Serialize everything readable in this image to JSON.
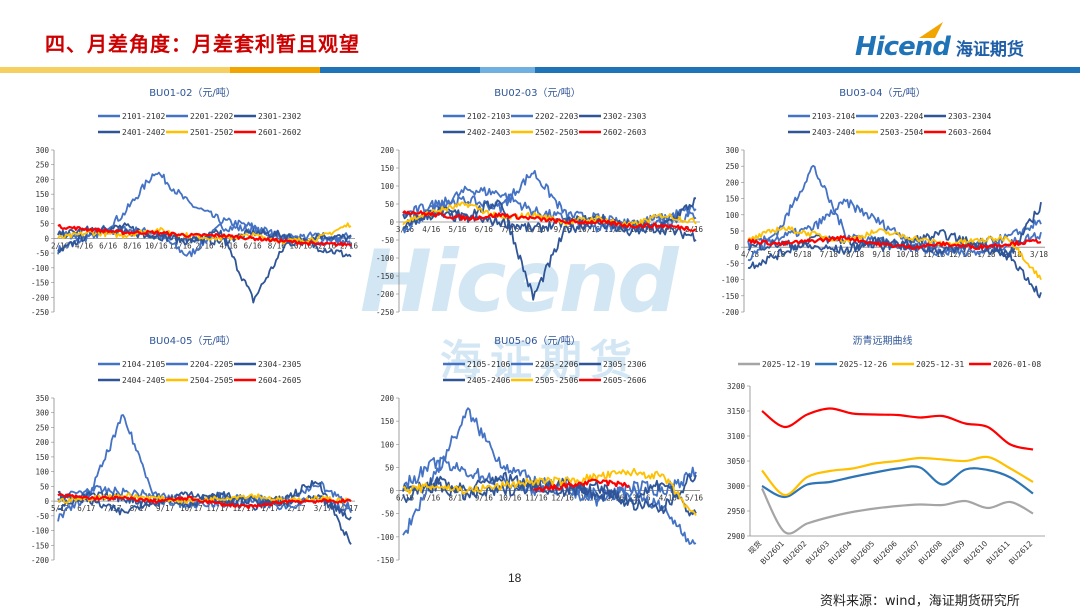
{
  "page": {
    "title": "四、月差角度：月差套利暂且观望",
    "logo_text": "Hicend",
    "logo_cn": "海证期货",
    "watermark_text": "Hicend",
    "watermark_cn": "海证期货",
    "page_number": "18",
    "source": "资料来源：wind，海证期货研究所",
    "colors": {
      "title": "#cc0000",
      "brand_blue": "#1f73b7",
      "stripe_yellow": "#f5d060",
      "stripe_orange": "#f0a500",
      "stripe_blue": "#1f73b7",
      "stripe_light": "#6fb0e0"
    }
  },
  "chart_data": [
    {
      "type": "line",
      "title": "BU01-02（元/吨）",
      "ylim": [
        -250,
        300
      ],
      "yticks": [
        300,
        250,
        200,
        150,
        100,
        50,
        0,
        -50,
        -100,
        -150,
        -200,
        -250
      ],
      "xticks": [
        "2/16",
        "4/16",
        "6/16",
        "8/16",
        "10/16",
        "12/16",
        "2/16",
        "4/16",
        "6/16",
        "8/16",
        "10/16",
        "12/16",
        "2/16"
      ],
      "x_range": [
        "7/16",
        "6/15"
      ],
      "series": [
        {
          "name": "2101-2102",
          "color": "#4472c4",
          "values": [
            -40,
            10,
            30,
            20,
            -60,
            40,
            30,
            0,
            -20,
            10
          ]
        },
        {
          "name": "2201-2202",
          "color": "#4472c4",
          "values": [
            20,
            0,
            80,
            230,
            120,
            60,
            40,
            0,
            10,
            -20
          ]
        },
        {
          "name": "2301-2302",
          "color": "#2f5597",
          "values": [
            -50,
            20,
            40,
            10,
            -10,
            20,
            -210,
            -20,
            10,
            0
          ]
        },
        {
          "name": "2401-2402",
          "color": "#2f5597",
          "values": [
            10,
            30,
            20,
            10,
            0,
            -10,
            20,
            10,
            -30,
            -60
          ]
        },
        {
          "name": "2501-2502",
          "color": "#ffc000",
          "values": [
            0,
            20,
            10,
            30,
            10,
            0,
            10,
            -10,
            0,
            50
          ]
        },
        {
          "name": "2601-2602",
          "color": "#ff0000",
          "values": [
            40,
            30,
            20,
            20,
            10,
            10,
            0,
            -10,
            -20,
            -20
          ]
        }
      ]
    },
    {
      "type": "line",
      "title": "BU02-03（元/吨）",
      "ylim": [
        -250,
        200
      ],
      "yticks": [
        200,
        150,
        100,
        50,
        0,
        -50,
        -100,
        -150,
        -200,
        -250
      ],
      "xticks": [
        "3/16",
        "4/16",
        "5/16",
        "6/16",
        "7/16",
        "8/16",
        "9/16",
        "10/16",
        "11/16",
        "12/16",
        "1/16",
        "2/16"
      ],
      "series": [
        {
          "name": "2102-2103",
          "color": "#4472c4",
          "values": [
            -20,
            40,
            90,
            80,
            30,
            10,
            -20,
            0,
            10,
            40
          ]
        },
        {
          "name": "2202-2203",
          "color": "#4472c4",
          "values": [
            20,
            50,
            60,
            40,
            140,
            20,
            10,
            -10,
            0,
            20
          ]
        },
        {
          "name": "2302-2303",
          "color": "#2f5597",
          "values": [
            -10,
            30,
            20,
            60,
            -210,
            -20,
            0,
            -30,
            -10,
            60
          ]
        },
        {
          "name": "2402-2403",
          "color": "#2f5597",
          "values": [
            10,
            20,
            10,
            0,
            -20,
            0,
            10,
            -10,
            -20,
            -40
          ]
        },
        {
          "name": "2502-2503",
          "color": "#ffc000",
          "values": [
            0,
            30,
            50,
            10,
            20,
            0,
            10,
            -10,
            20,
            0
          ]
        },
        {
          "name": "2602-2603",
          "color": "#ff0000",
          "values": [
            30,
            20,
            10,
            20,
            10,
            0,
            0,
            -10,
            -10,
            -20
          ]
        }
      ]
    },
    {
      "type": "line",
      "title": "BU03-04（元/吨）",
      "ylim": [
        -200,
        300
      ],
      "yticks": [
        300,
        250,
        200,
        150,
        100,
        50,
        0,
        -50,
        -100,
        -150,
        -200
      ],
      "xticks": [
        "4/18",
        "5/18",
        "6/18",
        "7/18",
        "8/18",
        "9/18",
        "10/18",
        "11/18",
        "12/18",
        "1/18",
        "2/18",
        "3/18"
      ],
      "series": [
        {
          "name": "2103-2104",
          "color": "#4472c4",
          "values": [
            -40,
            60,
            250,
            40,
            20,
            0,
            -20,
            10,
            30,
            80
          ]
        },
        {
          "name": "2203-2204",
          "color": "#4472c4",
          "values": [
            10,
            30,
            60,
            140,
            80,
            20,
            0,
            -20,
            10,
            40
          ]
        },
        {
          "name": "2303-2304",
          "color": "#2f5597",
          "values": [
            -60,
            -20,
            30,
            20,
            0,
            20,
            40,
            10,
            -30,
            130
          ]
        },
        {
          "name": "2403-2404",
          "color": "#2f5597",
          "values": [
            0,
            10,
            0,
            -10,
            20,
            0,
            -10,
            10,
            -20,
            -150
          ]
        },
        {
          "name": "2503-2504",
          "color": "#ffc000",
          "values": [
            20,
            60,
            40,
            20,
            50,
            30,
            10,
            20,
            30,
            -100
          ]
        },
        {
          "name": "2603-2604",
          "color": "#ff0000",
          "values": [
            20,
            10,
            20,
            30,
            10,
            0,
            10,
            0,
            10,
            20
          ]
        }
      ]
    },
    {
      "type": "line",
      "title": "BU04-05（元/吨）",
      "ylim": [
        -200,
        350
      ],
      "yticks": [
        350,
        300,
        250,
        200,
        150,
        100,
        50,
        0,
        -50,
        -100,
        -150,
        -200
      ],
      "xticks": [
        "5/17",
        "6/17",
        "7/17",
        "8/17",
        "9/17",
        "10/17",
        "11/17",
        "12/17",
        "1/17",
        "2/17",
        "3/17",
        "4/17"
      ],
      "series": [
        {
          "name": "2104-2105",
          "color": "#4472c4",
          "values": [
            -60,
            30,
            290,
            10,
            -20,
            20,
            0,
            -20,
            10,
            -40
          ]
        },
        {
          "name": "2204-2205",
          "color": "#4472c4",
          "values": [
            10,
            40,
            30,
            20,
            0,
            -10,
            10,
            0,
            60,
            -20
          ]
        },
        {
          "name": "2304-2305",
          "color": "#2f5597",
          "values": [
            -20,
            20,
            10,
            -10,
            30,
            0,
            -20,
            10,
            70,
            -150
          ]
        },
        {
          "name": "2404-2405",
          "color": "#2f5597",
          "values": [
            20,
            0,
            -40,
            10,
            -10,
            20,
            0,
            -10,
            10,
            -60
          ]
        },
        {
          "name": "2504-2505",
          "color": "#ffc000",
          "values": [
            0,
            10,
            20,
            10,
            0,
            10,
            20,
            0,
            10,
            0
          ]
        },
        {
          "name": "2604-2605",
          "color": "#ff0000",
          "values": [
            20,
            10,
            10,
            0,
            10,
            -10,
            -20,
            0,
            0,
            0
          ]
        }
      ]
    },
    {
      "type": "line",
      "title": "BU05-06（元/吨）",
      "ylim": [
        -150,
        200
      ],
      "yticks": [
        200,
        150,
        100,
        50,
        0,
        -50,
        -100,
        -150
      ],
      "xticks": [
        "6/16",
        "7/16",
        "8/16",
        "9/16",
        "10/16",
        "11/16",
        "12/16",
        "1/16",
        "2/16",
        "3/16",
        "4/16",
        "5/16"
      ],
      "series": [
        {
          "name": "2105-2106",
          "color": "#4472c4",
          "values": [
            -100,
            40,
            170,
            60,
            20,
            0,
            -20,
            10,
            0,
            40
          ]
        },
        {
          "name": "2205-2206",
          "color": "#4472c4",
          "values": [
            10,
            60,
            40,
            20,
            0,
            10,
            -10,
            0,
            -40,
            -120
          ]
        },
        {
          "name": "2305-2306",
          "color": "#2f5597",
          "values": [
            -20,
            20,
            0,
            30,
            10,
            20,
            -10,
            -20,
            20,
            -60
          ]
        },
        {
          "name": "2405-2406",
          "color": "#2f5597",
          "values": [
            0,
            10,
            -10,
            0,
            10,
            0,
            10,
            -30,
            -40,
            40
          ]
        },
        {
          "name": "2505-2506",
          "color": "#ffc000",
          "values": [
            0,
            10,
            0,
            10,
            20,
            20,
            30,
            40,
            30,
            -60
          ]
        },
        {
          "name": "2605-2606",
          "color": "#ff0000",
          "values": [
            null,
            null,
            null,
            null,
            0,
            10,
            20,
            10,
            null,
            null
          ]
        }
      ]
    },
    {
      "type": "line",
      "title": "沥青远期曲线",
      "ylim": [
        2900,
        3200
      ],
      "yticks": [
        3200,
        3150,
        3100,
        3050,
        3000,
        2950,
        2900
      ],
      "categories": [
        "现货",
        "BU2601",
        "BU2602",
        "BU2603",
        "BU2604",
        "BU2605",
        "BU2606",
        "BU2607",
        "BU2608",
        "BU2609",
        "BU2610",
        "BU2611",
        "BU2612"
      ],
      "series": [
        {
          "name": "2025-12-19",
          "color": "#a5a5a5",
          "values": [
            2995,
            2908,
            2925,
            2938,
            2948,
            2955,
            2960,
            2963,
            2962,
            2970,
            2956,
            2968,
            2945
          ]
        },
        {
          "name": "2025-12-26",
          "color": "#2e75b6",
          "values": [
            3000,
            2978,
            3003,
            3008,
            3018,
            3027,
            3035,
            3037,
            3003,
            3033,
            3032,
            3017,
            2985
          ]
        },
        {
          "name": "2025-12-31",
          "color": "#ffc000",
          "values": [
            3031,
            2982,
            3018,
            3030,
            3035,
            3045,
            3050,
            3056,
            3053,
            3050,
            3058,
            3035,
            3008
          ]
        },
        {
          "name": "2026-01-08",
          "color": "#ff0000",
          "values": [
            3150,
            3118,
            3143,
            3155,
            3145,
            3143,
            3142,
            3137,
            3140,
            3125,
            3118,
            3083,
            3073
          ]
        }
      ]
    }
  ]
}
